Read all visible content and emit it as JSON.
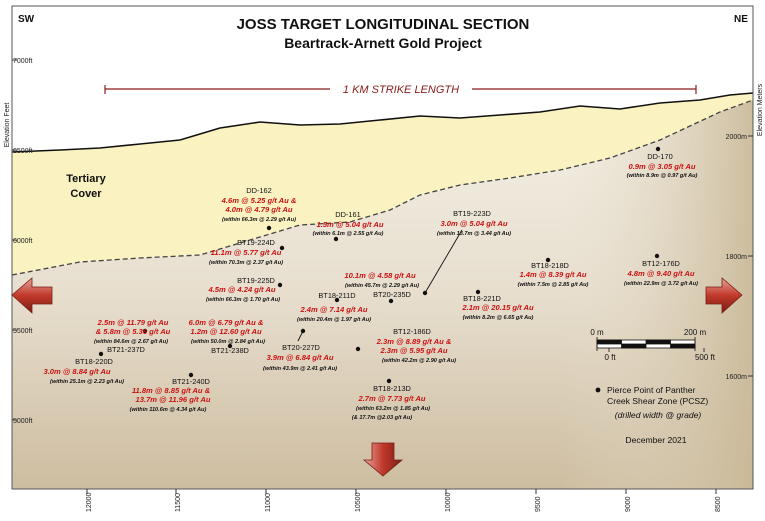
{
  "title": "JOSS TARGET LONGITUDINAL SECTION",
  "subtitle": "Beartrack-Arnett Gold Project",
  "direction_left": "SW",
  "direction_right": "NE",
  "left_axis_label": "Elevation Feet",
  "right_axis_label": "Elevation Meters",
  "strike_label": "1 KM STRIKE LENGTH",
  "tertiary_label": [
    "Tertiary",
    "Cover"
  ],
  "left_ticks": [
    "7000ft",
    "6500ft",
    "6000ft",
    "5500ft",
    "5000ft"
  ],
  "right_ticks": [
    "2000m",
    "1800m",
    "1600m"
  ],
  "bottom_ticks": [
    "12000",
    "11500",
    "11000",
    "10500",
    "10000",
    "9500",
    "9000",
    "8500"
  ],
  "scale_bar": {
    "m_start": "0 m",
    "m_end": "200 m",
    "ft_start": "0 ft",
    "ft_end": "500 ft"
  },
  "legend": {
    "line1": "Pierce Point of Panther",
    "line2": "Creek Shear Zone (PCSZ)",
    "note": "(drilled width @ grade)",
    "date": "December 2021"
  },
  "colors": {
    "cover": "#fbf2c2",
    "rock_top": "#f2eee0",
    "rock_bottom": "#d3c3a8",
    "arrow": "#c0392b",
    "grade": "#cc1111"
  },
  "drillholes": [
    {
      "id": "DD-170",
      "lines": [
        "0.9m @ 3.05 g/t Au"
      ],
      "sub": "(within 8.9m @ 0.97 g/t Au)"
    },
    {
      "id": "DD-162",
      "lines": [
        "4.6m @ 5.25 g/t Au &",
        "4.0m @ 4.79 g/t Au"
      ],
      "sub": "(within 66.3m @ 2.29 g/t Au)"
    },
    {
      "id": "DD-161",
      "lines": [
        "1.5m @ 5.04 g/t Au"
      ],
      "sub": "(within 6.1m @ 2.55 g/t Au)"
    },
    {
      "id": "BT19-223D",
      "lines": [
        "3.0m @ 5.04 g/t Au"
      ],
      "sub": "(within 13.7m @ 3.44 g/t Au)"
    },
    {
      "id": "BT19-224D",
      "lines": [
        "11.1m @ 5.77 g/t Au"
      ],
      "sub": "(within 70.3m @ 2.37 g/t Au)"
    },
    {
      "id": "BT18-218D",
      "lines": [
        "1.4m @ 8.39 g/t Au"
      ],
      "sub": "(within 7.5m @ 2.85 g/t Au)"
    },
    {
      "id": "BT12-176D",
      "lines": [
        "4.8m @ 9.40 g/t Au"
      ],
      "sub": "(within 22.9m @ 3.72 g/t Au)"
    },
    {
      "id": "BT19-225D",
      "lines": [
        "4.5m @ 4.24 g/t Au"
      ],
      "sub": "(within 66.3m @ 1.70 g/t Au)"
    },
    {
      "id": "",
      "lines": [
        "10.1m @ 4.58 g/t Au"
      ],
      "sub": "(within 45.7m @ 2.29 g/t Au)"
    },
    {
      "id": "BT18-211D",
      "lines": [
        "2.4m @ 7.14 g/t Au"
      ],
      "sub": "(within 20.4m @ 1.97 g/t Au)"
    },
    {
      "id": "BT20-235D",
      "lines": [],
      "sub": ""
    },
    {
      "id": "BT18-221D",
      "lines": [
        "2.1m @ 20.15 g/t Au"
      ],
      "sub": "(within 8.2m @ 6.65 g/t Au)"
    },
    {
      "id": "BT21-237D",
      "lines": [
        "2.5m @ 11.79 g/t Au",
        "& 5.8m @ 5.36 g/t Au"
      ],
      "sub": "(within 84.6m @ 2.67 g/t Au)"
    },
    {
      "id": "BT21-238D",
      "lines": [
        "6.0m @ 6.79 g/t Au &",
        "1.2m @ 12.60 g/t Au"
      ],
      "sub": "(within 50.0m @ 2.84 g/t Au)"
    },
    {
      "id": "BT12-186D",
      "lines": [
        "2.3m @ 8.89 g/t Au &",
        "2.3m @ 5.95 g/t Au"
      ],
      "sub": "(within 42.2m @ 2.90 g/t Au)"
    },
    {
      "id": "BT20-227D",
      "lines": [
        "3.9m @ 6.84 g/t Au"
      ],
      "sub": "(within 43.9m @ 2.41 g/t Au)"
    },
    {
      "id": "BT18-220D",
      "lines": [
        "3.0m @ 8.84 g/t Au"
      ],
      "sub": "(within 25.1m @ 2.23 g/t Au)"
    },
    {
      "id": "BT21-240D",
      "lines": [
        "11.8m @ 8.85 g/t Au &",
        "13.7m @ 11.96 g/t Au"
      ],
      "sub": "(within 110.6m @ 4.34 g/t Au)"
    },
    {
      "id": "BT18-213D",
      "lines": [
        "2.7m @ 7.73 g/t Au"
      ],
      "sub": "(within 63.2m @ 1.85 g/t Au)",
      "sub2": "(& 17.7m @2.03 g/t Au)"
    }
  ]
}
